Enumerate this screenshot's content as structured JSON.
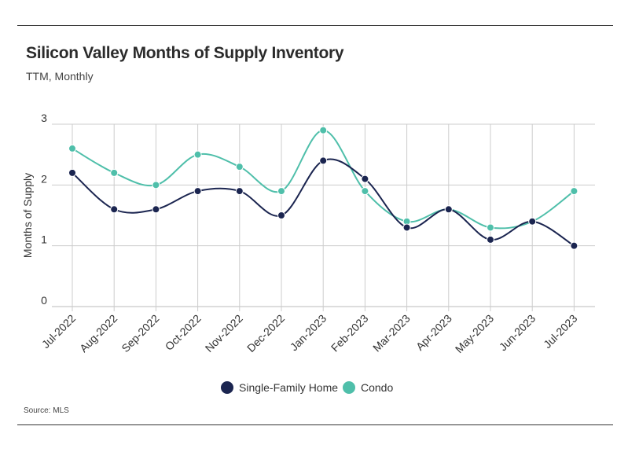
{
  "header": {
    "title": "Silicon Valley Months of Supply Inventory",
    "subtitle": "TTM, Monthly"
  },
  "footer": {
    "source": "Source:  MLS"
  },
  "chart_data": {
    "type": "line",
    "title": "Silicon Valley Months of Supply Inventory",
    "subtitle": "TTM, Monthly",
    "xlabel": "",
    "ylabel": "Months of Supply",
    "ylim": [
      0,
      3
    ],
    "yticks": [
      0,
      1,
      2,
      3
    ],
    "grid": true,
    "legend": "bottom-center",
    "categories": [
      "Jul-2022",
      "Aug-2022",
      "Sep-2022",
      "Oct-2022",
      "Nov-2022",
      "Dec-2022",
      "Jan-2023",
      "Feb-2023",
      "Mar-2023",
      "Apr-2023",
      "May-2023",
      "Jun-2023",
      "Jul-2023"
    ],
    "series": [
      {
        "name": "Single-Family Home",
        "color": "#1b2550",
        "values": [
          2.2,
          1.6,
          1.6,
          1.9,
          1.9,
          1.5,
          2.4,
          2.1,
          1.3,
          1.6,
          1.1,
          1.4,
          1.0
        ]
      },
      {
        "name": "Condo",
        "color": "#4fbfaa",
        "values": [
          2.6,
          2.2,
          2.0,
          2.5,
          2.3,
          1.9,
          2.9,
          1.9,
          1.4,
          1.6,
          1.3,
          1.4,
          1.9
        ]
      }
    ]
  }
}
